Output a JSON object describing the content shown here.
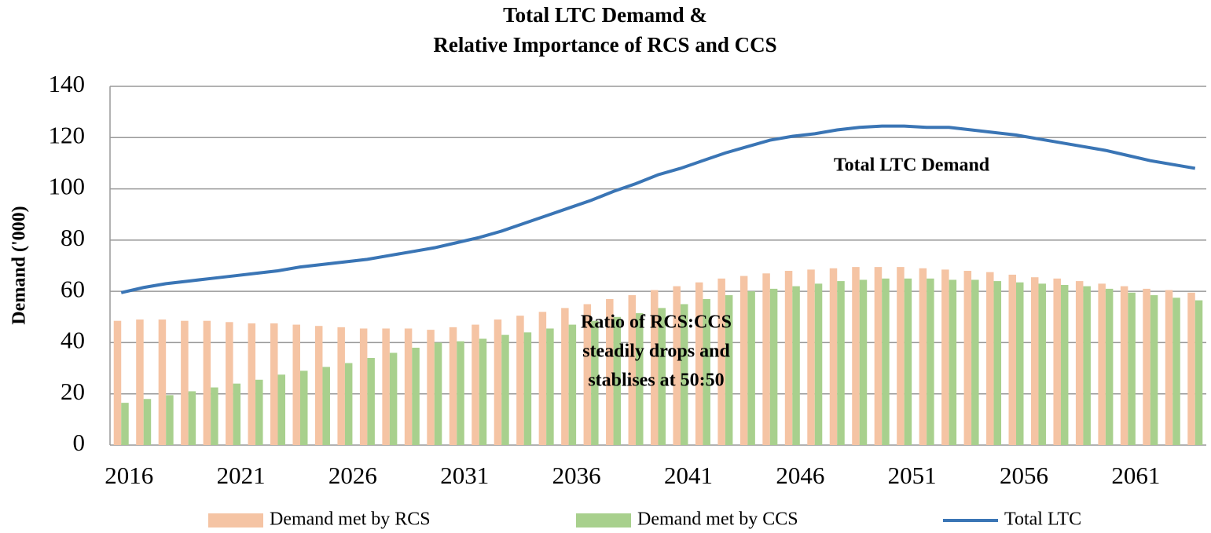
{
  "chart_data": {
    "type": "bar-line",
    "title": [
      "Total LTC Demamd &",
      "Relative Importance of RCS and CCS"
    ],
    "y_label": "Demand ('000)",
    "categories": [
      "2016",
      null,
      null,
      null,
      null,
      "2021",
      null,
      null,
      null,
      null,
      "2026",
      null,
      null,
      null,
      null,
      "2031",
      null,
      null,
      null,
      null,
      "2036",
      null,
      null,
      null,
      null,
      "2041",
      null,
      null,
      null,
      null,
      "2046",
      null,
      null,
      null,
      null,
      "2051",
      null,
      null,
      null,
      null,
      "2056",
      null,
      null,
      null,
      null,
      "2061",
      null,
      null,
      null
    ],
    "series": [
      {
        "name": "Demand met by RCS",
        "type": "bar",
        "color": "#f5c4a4",
        "values": [
          48.5,
          49,
          49,
          48.5,
          48.5,
          48,
          47.5,
          47.5,
          47,
          46.5,
          46,
          45.5,
          45.5,
          45.5,
          45,
          46,
          47,
          49,
          50.5,
          52,
          53.5,
          55,
          57,
          58.5,
          60.5,
          62,
          63.5,
          65,
          66,
          67,
          68,
          68.5,
          69,
          69.5,
          69.5,
          69.5,
          69,
          68.5,
          68,
          67.5,
          66.5,
          65.5,
          65,
          64,
          63,
          62,
          61,
          60.5,
          59.5
        ]
      },
      {
        "name": "Demand met by CCS",
        "type": "bar",
        "color": "#a8d08d",
        "values": [
          16.5,
          18,
          19.5,
          21,
          22.5,
          24,
          25.5,
          27.5,
          29,
          30.5,
          32,
          34,
          36,
          38,
          40,
          40.5,
          41.5,
          43,
          44,
          45.5,
          47,
          48.5,
          50,
          51.5,
          53.5,
          55,
          57,
          58.5,
          60,
          61,
          62,
          63,
          64,
          64.5,
          65,
          65,
          65,
          64.5,
          64.5,
          64,
          63.5,
          63,
          62.5,
          62,
          61,
          59.5,
          58.5,
          57.5,
          56.5
        ]
      },
      {
        "name": "Total LTC",
        "type": "line",
        "color": "#3a75b5",
        "values": [
          59.5,
          61.5,
          63,
          64,
          65,
          66,
          67,
          68,
          69.5,
          70.5,
          71.5,
          72.5,
          74,
          75.5,
          77,
          79,
          81,
          83.5,
          86.5,
          89.5,
          92.5,
          95.5,
          99,
          102,
          105.5,
          108,
          111,
          114,
          116.5,
          119,
          120.5,
          121.5,
          123,
          124,
          124.5,
          124.5,
          124,
          124,
          123,
          122,
          121,
          119.5,
          118,
          116.5,
          115,
          113,
          111,
          109.5,
          108
        ]
      }
    ],
    "ylim": [
      0,
      140
    ],
    "yticks": [
      0,
      20,
      40,
      60,
      80,
      100,
      120,
      140
    ],
    "grid": true,
    "legend": "bottom",
    "annotations": [
      [
        "Total LTC Demand"
      ],
      [
        "Ratio of RCS:CCS",
        "steadily drops and",
        "stablises at 50:50"
      ]
    ]
  }
}
